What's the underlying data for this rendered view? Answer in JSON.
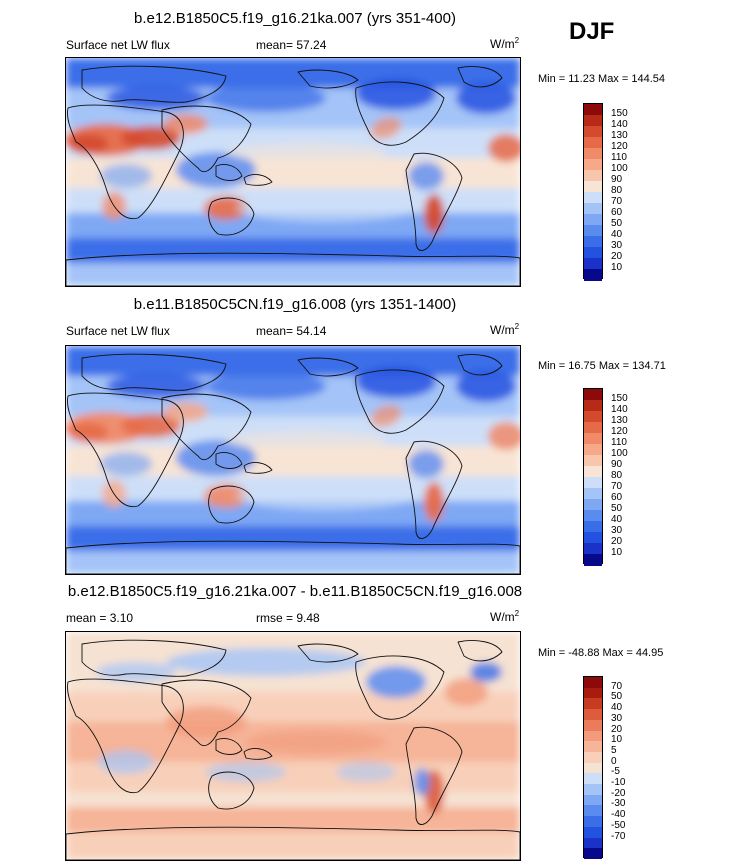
{
  "season": "DJF",
  "colors": {
    "scale15": [
      "#08088a",
      "#1a32c8",
      "#2452e0",
      "#3a6ee8",
      "#5a8cf0",
      "#7ea8f4",
      "#a4c4f8",
      "#cddff8",
      "#f8e4d4",
      "#f8c6ac",
      "#f6a888",
      "#f08a68",
      "#e66a48",
      "#d44a2c",
      "#b82a18",
      "#8c0a0a"
    ],
    "diff16": [
      "#08088a",
      "#1a32c8",
      "#2452e0",
      "#3a6ee8",
      "#5a8cf0",
      "#7ea8f4",
      "#a4c4f8",
      "#cddff8",
      "#f6e2d2",
      "#f8d0ba",
      "#f6b498",
      "#f29a7a",
      "#ea7c5c",
      "#dc5c3c",
      "#c63c22",
      "#a81c10",
      "#8c0a0a"
    ]
  },
  "panels": [
    {
      "title": "b.e12.B1850C5.f19_g16.21ka.007 (yrs 351-400)",
      "variable": "Surface net LW flux",
      "mean_label": "mean=",
      "mean": "57.24",
      "units": "W/m",
      "units_exp": "2",
      "minmax": "Min = 11.23 Max = 144.54",
      "map_name": "map-21ka"
    },
    {
      "title": "b.e11.B1850C5CN.f19_g16.008 (yrs 1351-1400)",
      "variable": "Surface net LW flux",
      "mean_label": "mean=",
      "mean": "54.14",
      "units": "W/m",
      "units_exp": "2",
      "minmax": "Min = 16.75 Max = 134.71",
      "map_name": "map-preindustrial"
    },
    {
      "title": "b.e12.B1850C5.f19_g16.21ka.007 - b.e11.B1850C5CN.f19_g16.008",
      "mean_label": "mean =",
      "mean": "3.10",
      "rmse_label": "rmse =",
      "rmse": "9.48",
      "units": "W/m",
      "units_exp": "2",
      "minmax": "Min = -48.88 Max = 44.95",
      "map_name": "map-difference"
    }
  ],
  "chart_data": [
    {
      "type": "heatmap",
      "title": "b.e12.B1850C5.f19_g16.21ka.007 (yrs 351-400)",
      "variable": "Surface net LW flux",
      "units": "W/m2",
      "mean": 57.24,
      "min": 11.23,
      "max": 144.54,
      "colorbar_levels": [
        "150",
        "140",
        "130",
        "120",
        "110",
        "100",
        "90",
        "80",
        "70",
        "60",
        "50",
        "40",
        "30",
        "20",
        "10"
      ]
    },
    {
      "type": "heatmap",
      "title": "b.e11.B1850C5CN.f19_g16.008 (yrs 1351-1400)",
      "variable": "Surface net LW flux",
      "units": "W/m2",
      "mean": 54.14,
      "min": 16.75,
      "max": 134.71,
      "colorbar_levels": [
        "150",
        "140",
        "130",
        "120",
        "110",
        "100",
        "90",
        "80",
        "70",
        "60",
        "50",
        "40",
        "30",
        "20",
        "10"
      ]
    },
    {
      "type": "heatmap",
      "title": "b.e12.B1850C5.f19_g16.21ka.007 - b.e11.B1850C5CN.f19_g16.008",
      "units": "W/m2",
      "mean": 3.1,
      "rmse": 9.48,
      "min": -48.88,
      "max": 44.95,
      "colorbar_levels": [
        "70",
        "50",
        "40",
        "30",
        "20",
        "10",
        "5",
        "0",
        "-5",
        "-10",
        "-20",
        "-30",
        "-40",
        "-50",
        "-70"
      ]
    }
  ]
}
